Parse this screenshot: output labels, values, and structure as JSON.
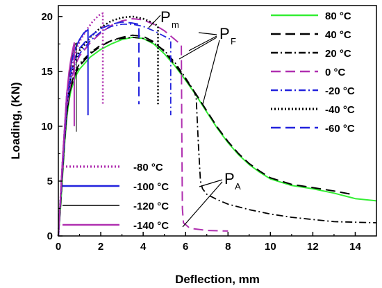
{
  "chart_data": {
    "type": "line",
    "xlabel": "Deflection, mm",
    "ylabel": "Loading, (KN)",
    "xlim": [
      0,
      15
    ],
    "ylim": [
      0,
      21
    ],
    "x_ticks": [
      0,
      2,
      4,
      6,
      8,
      10,
      12,
      14
    ],
    "y_ticks": [
      0,
      5,
      10,
      15,
      20
    ],
    "grid": false,
    "legend_placement": [
      "top-right",
      "bottom-left"
    ],
    "series": [
      {
        "name": "80 °C",
        "color": "#33ee33",
        "dash": "solid",
        "x": [
          0,
          0.1,
          0.2,
          0.3,
          0.4,
          0.5,
          0.6,
          0.8,
          1.0,
          1.5,
          2.0,
          2.5,
          3.0,
          3.5,
          4.0,
          4.5,
          5.0,
          5.5,
          6.0,
          6.5,
          7.0,
          7.5,
          8.0,
          8.5,
          9.0,
          9.5,
          10.0,
          11.0,
          12.0,
          13.0,
          14.0,
          15.0
        ],
        "y": [
          0,
          2.5,
          5.5,
          8.5,
          10.8,
          12.3,
          13.3,
          14.5,
          15.2,
          16.3,
          17.0,
          17.5,
          17.9,
          18.1,
          18.0,
          17.5,
          16.6,
          15.5,
          14.2,
          12.8,
          11.3,
          9.8,
          8.5,
          7.4,
          6.5,
          5.8,
          5.2,
          4.6,
          4.3,
          3.9,
          3.4,
          3.2
        ]
      },
      {
        "name": "40 °C",
        "color": "#000000",
        "dash": "long",
        "x": [
          0,
          0.1,
          0.2,
          0.3,
          0.4,
          0.5,
          0.6,
          0.8,
          1.0,
          1.5,
          2.0,
          2.5,
          3.0,
          3.5,
          4.0,
          4.5,
          5.0,
          5.5,
          6.0,
          6.5,
          7.0,
          7.5,
          8.0,
          8.5,
          9.0,
          9.5,
          10.0,
          11.0,
          12.0,
          13.0,
          13.8
        ],
        "y": [
          0,
          2.7,
          5.8,
          8.9,
          11.1,
          12.6,
          13.6,
          14.8,
          15.5,
          16.6,
          17.3,
          17.8,
          18.1,
          18.3,
          18.2,
          17.7,
          16.8,
          15.6,
          14.3,
          12.9,
          11.4,
          9.9,
          8.6,
          7.5,
          6.6,
          5.9,
          5.3,
          4.7,
          4.4,
          4.1,
          3.8
        ]
      },
      {
        "name": "20 °C",
        "color": "#000000",
        "dash": "dashdot",
        "x": [
          0,
          0.2,
          0.4,
          0.6,
          0.8,
          1.0,
          1.5,
          2.0,
          2.5,
          3.0,
          3.5,
          4.0,
          4.5,
          5.0,
          5.5,
          6.0,
          6.4,
          6.5,
          6.6,
          6.7,
          6.8,
          7.0,
          7.5,
          8.0,
          9.0,
          10.0,
          11.0,
          12.0,
          13.0,
          14.0,
          15.0
        ],
        "y": [
          0,
          6.0,
          11.3,
          13.8,
          15.0,
          15.7,
          16.7,
          17.4,
          17.8,
          18.0,
          18.1,
          18.0,
          17.6,
          16.9,
          15.8,
          14.4,
          13.2,
          12.6,
          8.5,
          5.0,
          4.3,
          3.8,
          3.3,
          2.9,
          2.4,
          2.0,
          1.7,
          1.5,
          1.3,
          1.25,
          1.2
        ]
      },
      {
        "name": "0 °C",
        "color": "#b030b0",
        "dash": "long",
        "x": [
          0,
          0.2,
          0.4,
          0.6,
          0.8,
          1.0,
          1.5,
          2.0,
          2.5,
          3.0,
          3.5,
          4.0,
          4.5,
          5.0,
          5.5,
          5.8,
          5.82,
          5.85,
          5.9,
          6.2,
          7.0,
          8.0
        ],
        "y": [
          0,
          6.2,
          11.7,
          14.2,
          15.6,
          16.4,
          17.6,
          18.5,
          19.2,
          19.6,
          19.8,
          19.7,
          19.3,
          18.7,
          17.9,
          17.4,
          10.0,
          2.5,
          1.2,
          0.7,
          0.5,
          0.45
        ]
      },
      {
        "name": "-20 °C",
        "color": "#2222dd",
        "dash": "dashdot",
        "x": [
          0,
          0.2,
          0.4,
          0.6,
          0.8,
          1.0,
          1.5,
          2.0,
          2.5,
          3.0,
          3.5,
          4.0,
          4.5,
          5.0,
          5.3,
          5.3
        ],
        "y": [
          0,
          6.3,
          11.9,
          14.5,
          15.8,
          16.6,
          17.8,
          18.6,
          19.1,
          19.3,
          19.3,
          19.1,
          18.7,
          18.2,
          17.9,
          11.0
        ]
      },
      {
        "name": "-40 °C",
        "color": "#000000",
        "dash": "dot",
        "x": [
          0,
          0.2,
          0.4,
          0.6,
          0.8,
          1.0,
          1.5,
          2.0,
          2.5,
          3.0,
          3.5,
          4.0,
          4.5,
          4.7,
          4.7
        ],
        "y": [
          0,
          6.5,
          12.2,
          14.8,
          16.1,
          16.9,
          18.1,
          19.0,
          19.6,
          19.9,
          20.0,
          19.8,
          19.4,
          19.1,
          12.0
        ]
      },
      {
        "name": "-60 °C",
        "color": "#2222dd",
        "dash": "long",
        "x": [
          0,
          0.2,
          0.4,
          0.6,
          0.8,
          1.0,
          1.5,
          2.0,
          2.5,
          3.0,
          3.5,
          3.8,
          3.8
        ],
        "y": [
          0,
          6.6,
          12.4,
          15.0,
          16.3,
          17.1,
          18.2,
          18.9,
          19.3,
          19.5,
          19.4,
          19.3,
          12.0
        ]
      },
      {
        "name": "-80 °C",
        "color": "#b030b0",
        "dash": "dot",
        "x": [
          0,
          0.2,
          0.4,
          0.6,
          0.8,
          1.0,
          1.3,
          1.6,
          1.9,
          2.1,
          2.1
        ],
        "y": [
          0,
          6.8,
          12.8,
          15.4,
          16.8,
          17.7,
          18.7,
          19.5,
          20.1,
          20.3,
          12.0
        ]
      },
      {
        "name": "-100 °C",
        "color": "#2222dd",
        "dash": "solid",
        "x": [
          0,
          0.2,
          0.4,
          0.6,
          0.8,
          1.0,
          1.2,
          1.4,
          1.4
        ],
        "y": [
          0,
          6.9,
          13.0,
          15.7,
          17.1,
          17.9,
          18.5,
          18.8,
          11.0
        ]
      },
      {
        "name": "-120 °C",
        "color": "#000000",
        "dash": "solid-thin",
        "x": [
          0,
          0.2,
          0.4,
          0.6,
          0.7,
          0.8,
          0.85,
          0.85
        ],
        "y": [
          0,
          7.0,
          13.0,
          15.9,
          16.9,
          17.5,
          17.6,
          9.5
        ]
      },
      {
        "name": "-140 °C",
        "color": "#b030b0",
        "dash": "solid",
        "x": [
          0,
          0.2,
          0.4,
          0.5,
          0.6,
          0.7,
          0.75,
          0.75
        ],
        "y": [
          0,
          7.0,
          13.0,
          14.9,
          16.2,
          17.2,
          17.6,
          10.0
        ]
      }
    ],
    "annotations": [
      {
        "text": "P",
        "subscript": "m"
      },
      {
        "text": "P",
        "subscript": "F"
      },
      {
        "text": "P",
        "subscript": "A"
      }
    ]
  }
}
